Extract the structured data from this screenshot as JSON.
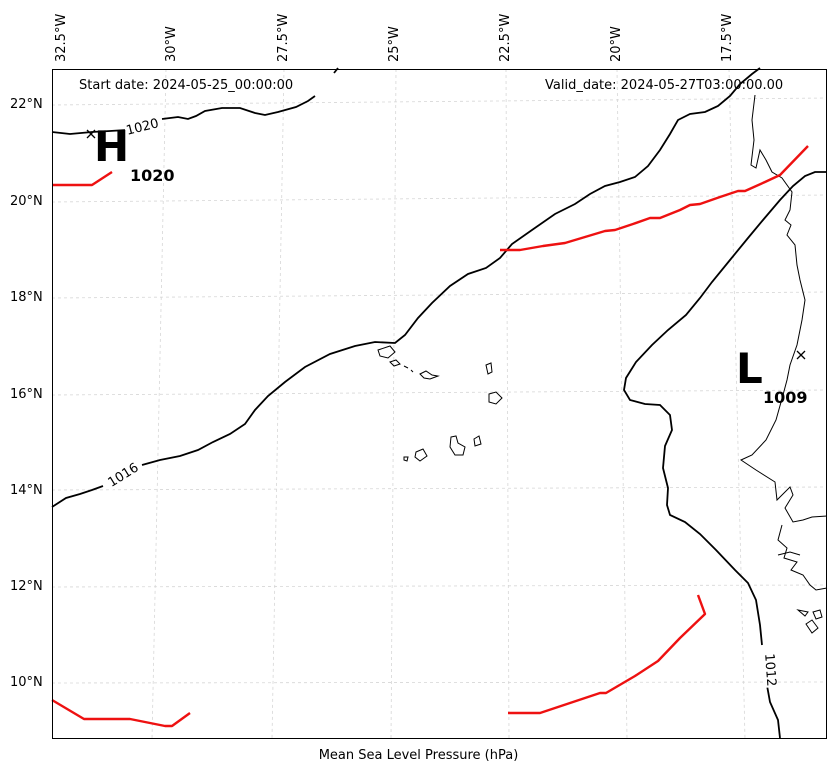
{
  "header": {
    "start_date": "Start date: 2024-05-25_00:00:00",
    "valid_date": "Valid_date: 2024-05-27T03:00:00.00"
  },
  "footer": {
    "title": "Mean Sea Level Pressure (hPa)"
  },
  "axes": {
    "longitudes": [
      "32.5°W",
      "30°W",
      "27.5°W",
      "25°W",
      "22.5°W",
      "20°W",
      "17.5°W"
    ],
    "latitudes": [
      "22°N",
      "20°N",
      "18°N",
      "16°N",
      "14°N",
      "12°N",
      "10°N"
    ]
  },
  "pressure_systems": {
    "high": {
      "letter": "H",
      "value": "1020"
    },
    "low": {
      "letter": "L",
      "value": "1009"
    }
  },
  "isobars": {
    "label_1020": "1020",
    "label_1016": "1016",
    "label_1012": "1012"
  },
  "colors": {
    "isobar": "#000000",
    "front": "#ee1111",
    "grid": "#cccccc"
  }
}
